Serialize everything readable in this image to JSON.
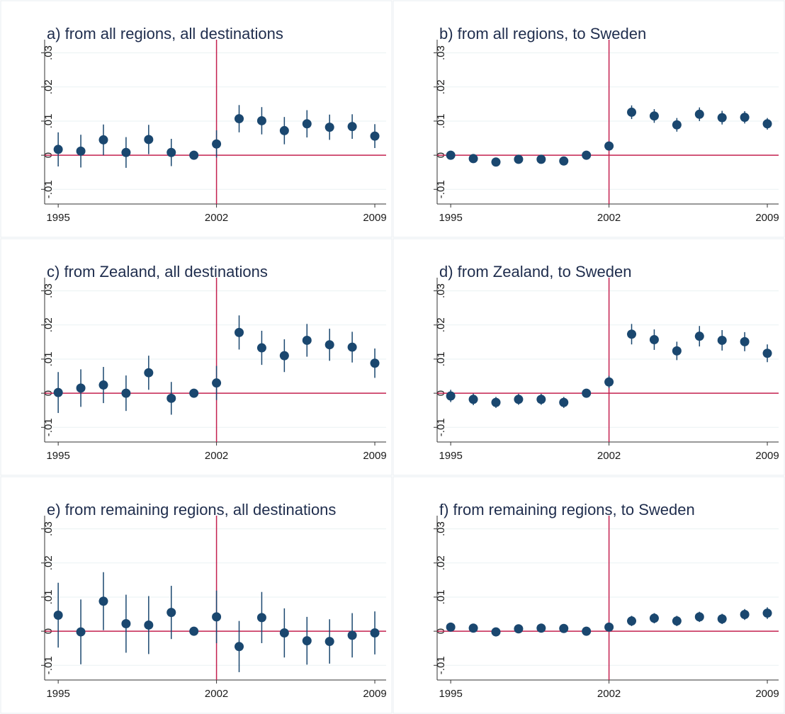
{
  "chart_data": [
    {
      "type": "errorbar",
      "title": "a) from all regions, all destinations",
      "x": [
        1995,
        1996,
        1997,
        1998,
        1999,
        2000,
        2001,
        2002,
        2003,
        2004,
        2005,
        2006,
        2007,
        2008,
        2009
      ],
      "values": [
        0.0017,
        0.0012,
        0.0045,
        0.0008,
        0.0046,
        0.0008,
        0,
        0.0033,
        0.0107,
        0.0101,
        0.0072,
        0.0092,
        0.0082,
        0.0084,
        0.0056
      ],
      "errors": [
        0.005,
        0.0048,
        0.0045,
        0.0045,
        0.0043,
        0.004,
        0,
        0.004,
        0.004,
        0.004,
        0.004,
        0.004,
        0.0037,
        0.0036,
        0.0035
      ],
      "xlim": [
        1994.4,
        2009.5
      ],
      "ylim": [
        -0.0143,
        0.0322
      ],
      "xticks": [
        1995,
        2002,
        2009
      ],
      "yticks": [
        {
          "value": -0.01,
          "label": "-.01"
        },
        0,
        {
          "value": 0.01,
          "label": ".01"
        },
        {
          "value": 0.02,
          "label": ".02"
        },
        {
          "value": 0.03,
          "label": ".03"
        }
      ],
      "ref_x": 2002,
      "ref_y": 0,
      "color": "#1a476f",
      "ref_color": "#c4204f",
      "grid": true
    },
    {
      "type": "errorbar",
      "title": "b) from all regions, to Sweden",
      "x": [
        1995,
        1996,
        1997,
        1998,
        1999,
        2000,
        2001,
        2002,
        2003,
        2004,
        2005,
        2006,
        2007,
        2008,
        2009
      ],
      "values": [
        0,
        -0.001,
        -0.002,
        -0.0012,
        -0.0012,
        -0.0017,
        0,
        0.0027,
        0.0126,
        0.0115,
        0.0089,
        0.012,
        0.011,
        0.0111,
        0.0092
      ],
      "errors": [
        0.001,
        0.001,
        0.0008,
        0.0008,
        0.0008,
        0.0008,
        0,
        0.001,
        0.002,
        0.002,
        0.002,
        0.002,
        0.002,
        0.0018,
        0.0017
      ],
      "xlim": [
        1994.4,
        2009.5
      ],
      "ylim": [
        -0.0143,
        0.0322
      ],
      "xticks": [
        1995,
        2002,
        2009
      ],
      "yticks": [
        {
          "value": -0.01,
          "label": "-.01"
        },
        0,
        {
          "value": 0.01,
          "label": ".01"
        },
        {
          "value": 0.02,
          "label": ".02"
        },
        {
          "value": 0.03,
          "label": ".03"
        }
      ],
      "ref_x": 2002,
      "ref_y": 0,
      "color": "#1a476f",
      "ref_color": "#c4204f",
      "grid": true
    },
    {
      "type": "errorbar",
      "title": "c) from Zealand, all destinations",
      "x": [
        1995,
        1996,
        1997,
        1998,
        1999,
        2000,
        2001,
        2002,
        2003,
        2004,
        2005,
        2006,
        2007,
        2008,
        2009
      ],
      "values": [
        0.0002,
        0.0015,
        0.0024,
        0,
        0.006,
        -0.0015,
        0,
        0.003,
        0.0178,
        0.0133,
        0.011,
        0.0155,
        0.0142,
        0.0135,
        0.0088
      ],
      "errors": [
        0.006,
        0.0055,
        0.0053,
        0.0052,
        0.005,
        0.0048,
        0,
        0.005,
        0.005,
        0.005,
        0.0048,
        0.0048,
        0.0047,
        0.0045,
        0.0043
      ],
      "xlim": [
        1994.4,
        2009.5
      ],
      "ylim": [
        -0.0143,
        0.0322
      ],
      "xticks": [
        1995,
        2002,
        2009
      ],
      "yticks": [
        {
          "value": -0.01,
          "label": "-.01"
        },
        0,
        {
          "value": 0.01,
          "label": ".01"
        },
        {
          "value": 0.02,
          "label": ".02"
        },
        {
          "value": 0.03,
          "label": ".03"
        }
      ],
      "ref_x": 2002,
      "ref_y": 0,
      "color": "#1a476f",
      "ref_color": "#c4204f",
      "grid": true
    },
    {
      "type": "errorbar",
      "title": "d) from Zealand, to Sweden",
      "x": [
        1995,
        1996,
        1997,
        1998,
        1999,
        2000,
        2001,
        2002,
        2003,
        2004,
        2005,
        2006,
        2007,
        2008,
        2009
      ],
      "values": [
        -0.0008,
        -0.0018,
        -0.0027,
        -0.0018,
        -0.0018,
        -0.0027,
        0,
        0.0033,
        0.0173,
        0.0157,
        0.0124,
        0.0167,
        0.0155,
        0.0151,
        0.0117
      ],
      "errors": [
        0.0018,
        0.0017,
        0.0016,
        0.0016,
        0.0016,
        0.0016,
        0,
        0.0018,
        0.003,
        0.003,
        0.0027,
        0.003,
        0.003,
        0.0028,
        0.0026
      ],
      "xlim": [
        1994.4,
        2009.5
      ],
      "ylim": [
        -0.0143,
        0.0322
      ],
      "xticks": [
        1995,
        2002,
        2009
      ],
      "yticks": [
        {
          "value": -0.01,
          "label": "-.01"
        },
        0,
        {
          "value": 0.01,
          "label": ".01"
        },
        {
          "value": 0.02,
          "label": ".02"
        },
        {
          "value": 0.03,
          "label": ".03"
        }
      ],
      "ref_x": 2002,
      "ref_y": 0,
      "color": "#1a476f",
      "ref_color": "#c4204f",
      "grid": true
    },
    {
      "type": "errorbar",
      "title": "e) from remaining regions, all destinations",
      "x": [
        1995,
        1996,
        1997,
        1998,
        1999,
        2000,
        2001,
        2002,
        2003,
        2004,
        2005,
        2006,
        2007,
        2008,
        2009
      ],
      "values": [
        0.0047,
        -0.0002,
        0.0088,
        0.0022,
        0.0018,
        0.0055,
        0,
        0.0042,
        -0.0045,
        0.004,
        -0.0005,
        -0.0028,
        -0.003,
        -0.0012,
        -0.0005
      ],
      "errors": [
        0.0095,
        0.0095,
        0.0085,
        0.0085,
        0.0085,
        0.0078,
        0,
        0.0077,
        0.0075,
        0.0075,
        0.0072,
        0.007,
        0.0065,
        0.0065,
        0.0063
      ],
      "xlim": [
        1994.4,
        2009.5
      ],
      "ylim": [
        -0.0143,
        0.0322
      ],
      "xticks": [
        1995,
        2002,
        2009
      ],
      "yticks": [
        {
          "value": -0.01,
          "label": "-.01"
        },
        0,
        {
          "value": 0.01,
          "label": ".01"
        },
        {
          "value": 0.02,
          "label": ".02"
        },
        {
          "value": 0.03,
          "label": ".03"
        }
      ],
      "ref_x": 2002,
      "ref_y": 0,
      "color": "#1a476f",
      "ref_color": "#c4204f",
      "grid": true
    },
    {
      "type": "errorbar",
      "title": "f) from remaining regions, to Sweden",
      "x": [
        1995,
        1996,
        1997,
        1998,
        1999,
        2000,
        2001,
        2002,
        2003,
        2004,
        2005,
        2006,
        2007,
        2008,
        2009
      ],
      "values": [
        0.0012,
        0.0009,
        -0.0002,
        0.0007,
        0.0009,
        0.0008,
        0,
        0.0012,
        0.003,
        0.0038,
        0.003,
        0.0042,
        0.0036,
        0.0049,
        0.0053
      ],
      "errors": [
        0.0012,
        0.0011,
        0.0011,
        0.0011,
        0.0011,
        0.001,
        0,
        0.0011,
        0.0015,
        0.0015,
        0.0015,
        0.0015,
        0.0015,
        0.0016,
        0.0017
      ],
      "xlim": [
        1994.4,
        2009.5
      ],
      "ylim": [
        -0.0143,
        0.0322
      ],
      "xticks": [
        1995,
        2002,
        2009
      ],
      "yticks": [
        {
          "value": -0.01,
          "label": "-.01"
        },
        0,
        {
          "value": 0.01,
          "label": ".01"
        },
        {
          "value": 0.02,
          "label": ".02"
        },
        {
          "value": 0.03,
          "label": ".03"
        }
      ],
      "ref_x": 2002,
      "ref_y": 0,
      "color": "#1a476f",
      "ref_color": "#c4204f",
      "grid": true
    }
  ]
}
